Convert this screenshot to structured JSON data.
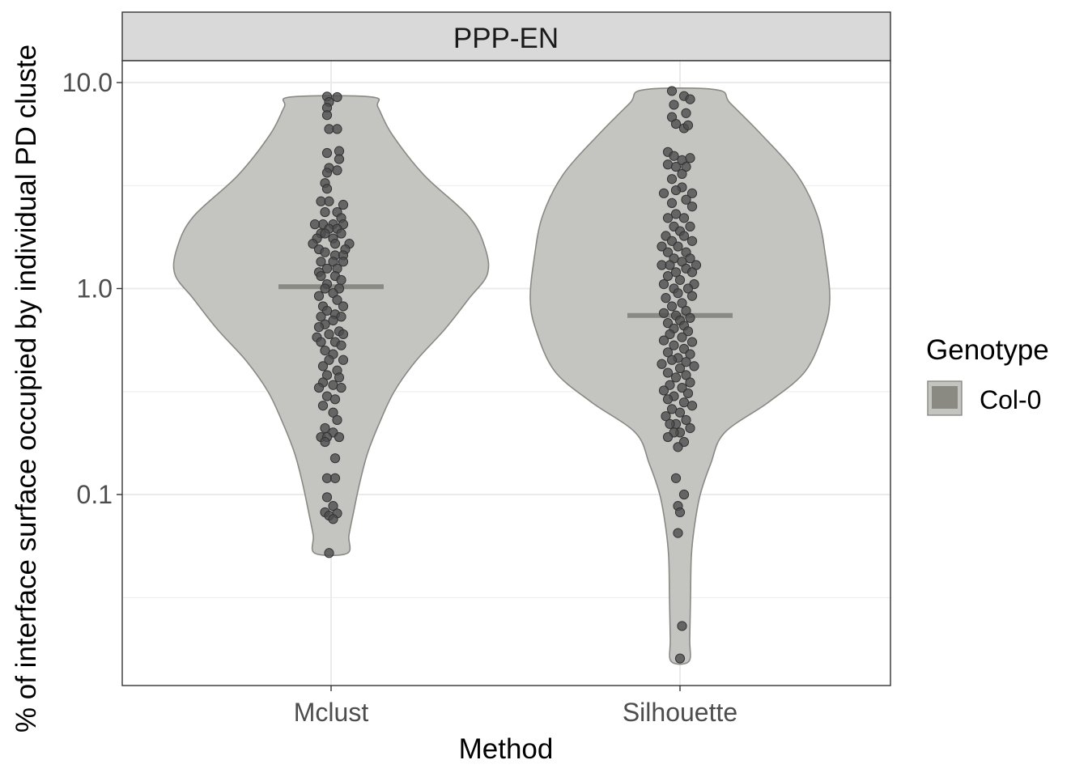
{
  "chart_data": {
    "type": "violin",
    "facet": "PPP-EN",
    "xlabel": "Method",
    "ylabel": "% of interface surface occupied by individual PD cluste",
    "y_scale": "log10",
    "ylim": [
      0.0135,
      21
    ],
    "y_ticks": [
      0.1,
      1.0,
      10.0
    ],
    "y_tick_labels": [
      "0.1",
      "1.0",
      "10.0"
    ],
    "categories": [
      "Mclust",
      "Silhouette"
    ],
    "grid": true,
    "legend": {
      "title": "Genotype",
      "position": "right",
      "entries": [
        {
          "label": "Col-0",
          "color": "#8a8a82"
        }
      ]
    },
    "colors": {
      "violin_fill": "#c4c4c0",
      "violin_stroke": "#8a8a84",
      "median": "#8a8a85",
      "point_fill": "#4d4d4d",
      "point_stroke": "#333333",
      "strip_fill": "#d9d9d9",
      "grid": "#ebebeb"
    },
    "groups": [
      {
        "name": "Mclust",
        "median": 1.02,
        "violin_min": 0.052,
        "violin_max": 8.5,
        "points": [
          [
            -2,
            8.55
          ],
          [
            3,
            8.5
          ],
          [
            -1,
            8.05
          ],
          [
            -2,
            7.55
          ],
          [
            -2,
            6.95
          ],
          [
            -1,
            5.95
          ],
          [
            3,
            5.95
          ],
          [
            -2,
            4.55
          ],
          [
            4,
            4.65
          ],
          [
            4,
            4.25
          ],
          [
            -1,
            3.85
          ],
          [
            -2,
            3.65
          ],
          [
            3,
            3.75
          ],
          [
            -3,
            3.25
          ],
          [
            -2,
            3.05
          ],
          [
            -5,
            2.65
          ],
          [
            -1,
            2.65
          ],
          [
            6,
            2.55
          ],
          [
            -3,
            2.35
          ],
          [
            3,
            2.35
          ],
          [
            5,
            2.2
          ],
          [
            -4,
            2.05
          ],
          [
            1,
            2.05
          ],
          [
            6,
            2.05
          ],
          [
            -8,
            2.05
          ],
          [
            -1,
            1.95
          ],
          [
            3,
            1.95
          ],
          [
            -5,
            1.85
          ],
          [
            -3,
            1.85
          ],
          [
            5,
            1.85
          ],
          [
            1,
            1.75
          ],
          [
            -7,
            1.75
          ],
          [
            2,
            1.65
          ],
          [
            -9,
            1.65
          ],
          [
            9,
            1.65
          ],
          [
            -6,
            1.55
          ],
          [
            7,
            1.55
          ],
          [
            -3,
            1.5
          ],
          [
            2,
            1.45
          ],
          [
            6,
            1.45
          ],
          [
            -5,
            1.35
          ],
          [
            1,
            1.35
          ],
          [
            6,
            1.35
          ],
          [
            -2,
            1.25
          ],
          [
            3,
            1.25
          ],
          [
            -6,
            1.2
          ],
          [
            2,
            1.15
          ],
          [
            -5,
            1.15
          ],
          [
            5,
            1.1
          ],
          [
            -2,
            1.05
          ],
          [
            4,
            1.0
          ],
          [
            -3,
            1.0
          ],
          [
            1,
            0.95
          ],
          [
            -6,
            0.92
          ],
          [
            3,
            0.88
          ],
          [
            -4,
            0.82
          ],
          [
            6,
            0.82
          ],
          [
            -2,
            0.78
          ],
          [
            2,
            0.75
          ],
          [
            -5,
            0.73
          ],
          [
            5,
            0.73
          ],
          [
            1,
            0.7
          ],
          [
            -3,
            0.67
          ],
          [
            -6,
            0.65
          ],
          [
            4,
            0.62
          ],
          [
            -1,
            0.6
          ],
          [
            6,
            0.6
          ],
          [
            -7,
            0.58
          ],
          [
            2,
            0.55
          ],
          [
            -5,
            0.55
          ],
          [
            5,
            0.53
          ],
          [
            -3,
            0.5
          ],
          [
            1,
            0.48
          ],
          [
            -1,
            0.45
          ],
          [
            6,
            0.45
          ],
          [
            -4,
            0.42
          ],
          [
            3,
            0.4
          ],
          [
            -2,
            0.38
          ],
          [
            4,
            0.37
          ],
          [
            -4,
            0.35
          ],
          [
            1,
            0.34
          ],
          [
            -6,
            0.33
          ],
          [
            5,
            0.33
          ],
          [
            -2,
            0.3
          ],
          [
            2,
            0.29
          ],
          [
            -4,
            0.27
          ],
          [
            1,
            0.25
          ],
          [
            3,
            0.23
          ],
          [
            -3,
            0.21
          ],
          [
            1,
            0.2
          ],
          [
            -5,
            0.19
          ],
          [
            -2,
            0.19
          ],
          [
            4,
            0.19
          ],
          [
            -3,
            0.18
          ],
          [
            2,
            0.15
          ],
          [
            -2,
            0.12
          ],
          [
            2,
            0.12
          ],
          [
            -2,
            0.097
          ],
          [
            1,
            0.088
          ],
          [
            -3,
            0.082
          ],
          [
            3,
            0.081
          ],
          [
            -1,
            0.079
          ],
          [
            1,
            0.076
          ],
          [
            -1,
            0.052
          ]
        ]
      },
      {
        "name": "Silhouette",
        "median": 0.74,
        "violin_min": 0.0155,
        "violin_max": 9.2,
        "points": [
          [
            -4,
            9.1
          ],
          [
            2,
            8.6
          ],
          [
            5,
            8.3
          ],
          [
            -3,
            7.8
          ],
          [
            3,
            7.1
          ],
          [
            -4,
            6.8
          ],
          [
            -2,
            6.3
          ],
          [
            2,
            6.0
          ],
          [
            4,
            6.2
          ],
          [
            -6,
            4.6
          ],
          [
            -3,
            4.4
          ],
          [
            1,
            4.2
          ],
          [
            5,
            4.3
          ],
          [
            -6,
            4.0
          ],
          [
            -2,
            3.9
          ],
          [
            3,
            3.9
          ],
          [
            1,
            3.6
          ],
          [
            -4,
            3.4
          ],
          [
            1,
            3.1
          ],
          [
            -2,
            3.0
          ],
          [
            6,
            2.9
          ],
          [
            -8,
            2.9
          ],
          [
            3,
            2.7
          ],
          [
            -4,
            2.6
          ],
          [
            6,
            2.5
          ],
          [
            -2,
            2.3
          ],
          [
            2,
            2.2
          ],
          [
            -6,
            2.2
          ],
          [
            5,
            2.0
          ],
          [
            -3,
            2.0
          ],
          [
            0,
            1.9
          ],
          [
            -7,
            1.8
          ],
          [
            2,
            1.8
          ],
          [
            -4,
            1.7
          ],
          [
            6,
            1.7
          ],
          [
            -1,
            1.6
          ],
          [
            -9,
            1.6
          ],
          [
            3,
            1.5
          ],
          [
            -6,
            1.5
          ],
          [
            5,
            1.4
          ],
          [
            -3,
            1.4
          ],
          [
            1,
            1.35
          ],
          [
            -9,
            1.3
          ],
          [
            -5,
            1.3
          ],
          [
            8,
            1.3
          ],
          [
            3,
            1.25
          ],
          [
            -2,
            1.2
          ],
          [
            6,
            1.2
          ],
          [
            -6,
            1.15
          ],
          [
            0,
            1.1
          ],
          [
            7,
            1.05
          ],
          [
            -8,
            1.05
          ],
          [
            -3,
            1.0
          ],
          [
            4,
            1.0
          ],
          [
            -1,
            0.95
          ],
          [
            6,
            0.92
          ],
          [
            -7,
            0.9
          ],
          [
            1,
            0.85
          ],
          [
            -4,
            0.82
          ],
          [
            3,
            0.78
          ],
          [
            -8,
            0.76
          ],
          [
            -2,
            0.74
          ],
          [
            5,
            0.72
          ],
          [
            0,
            0.7
          ],
          [
            -6,
            0.68
          ],
          [
            2,
            0.66
          ],
          [
            -3,
            0.64
          ],
          [
            4,
            0.62
          ],
          [
            -5,
            0.6
          ],
          [
            1,
            0.58
          ],
          [
            -8,
            0.56
          ],
          [
            6,
            0.55
          ],
          [
            -3,
            0.53
          ],
          [
            2,
            0.51
          ],
          [
            -6,
            0.49
          ],
          [
            5,
            0.48
          ],
          [
            -1,
            0.46
          ],
          [
            -4,
            0.45
          ],
          [
            3,
            0.44
          ],
          [
            -9,
            0.43
          ],
          [
            7,
            0.42
          ],
          [
            0,
            0.41
          ],
          [
            -6,
            0.39
          ],
          [
            3,
            0.38
          ],
          [
            -2,
            0.37
          ],
          [
            5,
            0.35
          ],
          [
            -5,
            0.34
          ],
          [
            1,
            0.33
          ],
          [
            -8,
            0.32
          ],
          [
            4,
            0.31
          ],
          [
            -3,
            0.3
          ],
          [
            -6,
            0.29
          ],
          [
            2,
            0.28
          ],
          [
            6,
            0.27
          ],
          [
            -4,
            0.26
          ],
          [
            0,
            0.25
          ],
          [
            -7,
            0.24
          ],
          [
            3,
            0.23
          ],
          [
            -2,
            0.22
          ],
          [
            -5,
            0.22
          ],
          [
            5,
            0.21
          ],
          [
            0,
            0.2
          ],
          [
            -3,
            0.2
          ],
          [
            -6,
            0.19
          ],
          [
            2,
            0.18
          ],
          [
            -1,
            0.17
          ],
          [
            -2,
            0.12
          ],
          [
            2,
            0.1
          ],
          [
            -1,
            0.088
          ],
          [
            0,
            0.082
          ],
          [
            -1,
            0.065
          ],
          [
            1,
            0.023
          ],
          [
            0,
            0.016
          ]
        ]
      }
    ]
  }
}
